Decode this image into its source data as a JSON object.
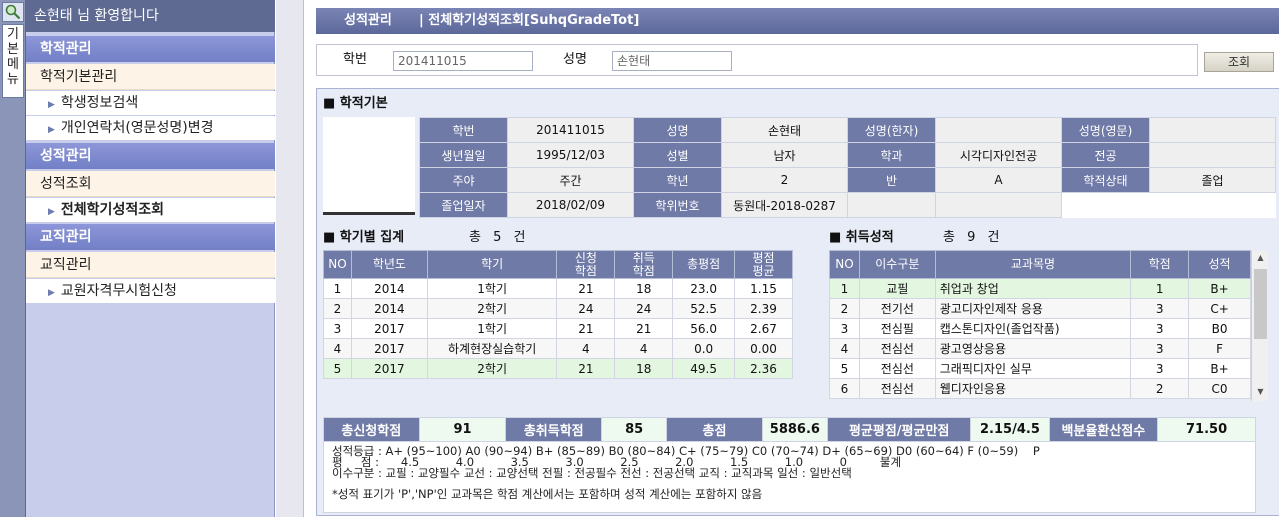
{
  "sidebar": {
    "vertical_tab": "기본메뉴",
    "welcome": "손현태 님 환영합니다",
    "sections": [
      {
        "label": "학적관리",
        "sub": "학적기본관리",
        "items": [
          "학생정보검색",
          "개인연락처(영문성명)변경"
        ]
      },
      {
        "label": "성적관리",
        "sub": "성적조회",
        "items": [
          "전체학기성적조회"
        ]
      },
      {
        "label": "교직관리",
        "sub": "교직관리",
        "items": [
          "교원자격무시험신청"
        ]
      }
    ]
  },
  "header": {
    "title": "성적관리      | 전체학기성적조회[SuhqGradeTot]"
  },
  "search": {
    "student_no_label": "학번",
    "student_no": "201411015",
    "name_label": "성명",
    "name": "손현태",
    "query_button": "조회"
  },
  "basic": {
    "heading": "■ 학적기본",
    "rows": [
      [
        [
          "학번",
          "k"
        ],
        [
          "201411015",
          "v"
        ],
        [
          "성명",
          "k"
        ],
        [
          "손현태",
          "v"
        ],
        [
          "성명(한자)",
          "k"
        ],
        [
          "",
          "v"
        ],
        [
          "성명(영문)",
          "k"
        ],
        [
          "",
          "v"
        ]
      ],
      [
        [
          "생년월일",
          "k"
        ],
        [
          "1995/12/03",
          "v"
        ],
        [
          "성별",
          "k"
        ],
        [
          "남자",
          "v"
        ],
        [
          "학과",
          "k"
        ],
        [
          "시각디자인전공",
          "v"
        ],
        [
          "전공",
          "k"
        ],
        [
          "",
          "v"
        ]
      ],
      [
        [
          "주야",
          "k"
        ],
        [
          "주간",
          "v"
        ],
        [
          "학년",
          "k"
        ],
        [
          "2",
          "v"
        ],
        [
          "반",
          "k"
        ],
        [
          "A",
          "v"
        ],
        [
          "학적상태",
          "k"
        ],
        [
          "졸업",
          "v"
        ]
      ],
      [
        [
          "졸업일자",
          "k"
        ],
        [
          "2018/02/09",
          "v"
        ],
        [
          "학위번호",
          "k"
        ],
        [
          "동원대-2018-0287",
          "v"
        ],
        [
          "",
          "v"
        ],
        [
          "",
          "v"
        ],
        [
          "",
          "w"
        ],
        [
          "",
          "w"
        ]
      ]
    ]
  },
  "semester": {
    "heading": "■ 학기별 집계",
    "count": "총 5 건",
    "columns": [
      "NO",
      "학년도",
      "학기",
      "신청\n학점",
      "취득\n학점",
      "총평점",
      "평점\n평균"
    ],
    "rows": [
      [
        "1",
        "2014",
        "1학기",
        "21",
        "18",
        "23.0",
        "1.15"
      ],
      [
        "2",
        "2014",
        "2학기",
        "24",
        "24",
        "52.5",
        "2.39"
      ],
      [
        "3",
        "2017",
        "1학기",
        "21",
        "21",
        "56.0",
        "2.67"
      ],
      [
        "4",
        "2017",
        "하계현장실습학기",
        "4",
        "4",
        "0.0",
        "0.00"
      ],
      [
        "5",
        "2017",
        "2학기",
        "21",
        "18",
        "49.5",
        "2.36"
      ]
    ],
    "selected_row": 4
  },
  "grades": {
    "heading": "■ 취득성적",
    "count": "총 9 건",
    "columns": [
      "NO",
      "이수구분",
      "교과목명",
      "학점",
      "성적"
    ],
    "rows": [
      [
        "1",
        "교필",
        "취업과 창업",
        "1",
        "B+"
      ],
      [
        "2",
        "전기선",
        "광고디자인제작 응용",
        "3",
        "C+"
      ],
      [
        "3",
        "전심필",
        "캡스톤디자인(졸업작품)",
        "3",
        "B0"
      ],
      [
        "4",
        "전심선",
        "광고영상응용",
        "3",
        "F"
      ],
      [
        "5",
        "전심선",
        "그래픽디자인 실무",
        "3",
        "B+"
      ],
      [
        "6",
        "전심선",
        "웹디자인응용",
        "2",
        "C0"
      ]
    ],
    "selected_row": 0
  },
  "summary": {
    "items": [
      [
        "총신청학점",
        "91"
      ],
      [
        "총취득학점",
        "85"
      ],
      [
        "총점",
        "5886.6"
      ],
      [
        "평균평점/평균만점",
        "2.15/4.5"
      ],
      [
        "백분율환산점수",
        "71.50"
      ]
    ]
  },
  "notes": [
    "성적등급 : A+ (95~100) A0 (90~94) B+ (85~89) B0 (80~84) C+ (75~79) C0 (70~74) D+ (65~69) D0 (60~64) F (0~59)    P",
    "평     점 :      4.5          4.0          3.5          3.0          2.5          2.0          1.5          1.0          0         불계",
    "이수구분 : 교필 : 교양필수 교선 : 교양선택 전필 : 전공필수 전선 : 전공선택 교직 : 교직과목 일선 : 일반선택",
    "",
    "*성적 표기가 'P','NP'인 교과목은 학점 계산에서는 포함하며 성적 계산에는 포함하지 않음"
  ]
}
